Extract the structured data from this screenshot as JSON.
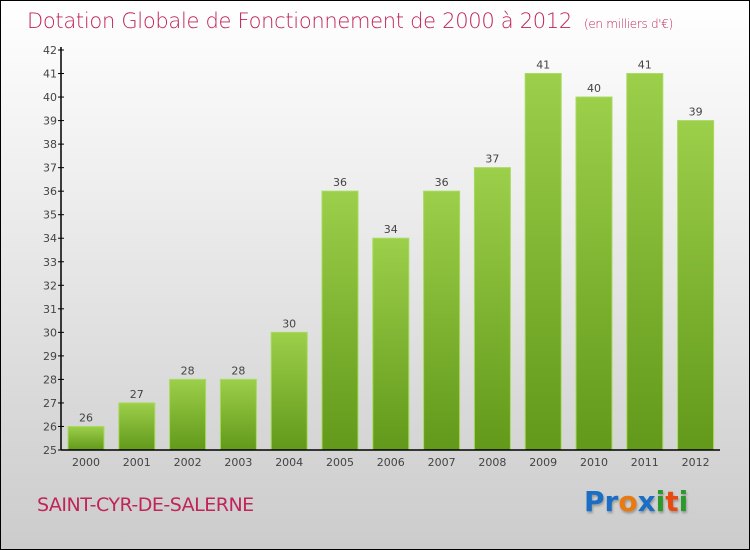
{
  "chart_data": {
    "type": "bar",
    "title": "Dotation Globale de Fonctionnement de 2000 à 2012",
    "unit": "(en milliers d'€)",
    "categories": [
      "2000",
      "2001",
      "2002",
      "2003",
      "2004",
      "2005",
      "2006",
      "2007",
      "2008",
      "2009",
      "2010",
      "2011",
      "2012"
    ],
    "values": [
      26,
      27,
      28,
      28,
      30,
      36,
      34,
      36,
      37,
      41,
      40,
      41,
      39
    ],
    "ylim": [
      25,
      42
    ],
    "yticks": [
      25,
      26,
      27,
      28,
      29,
      30,
      31,
      32,
      33,
      34,
      35,
      36,
      37,
      38,
      39,
      40,
      41,
      42
    ],
    "xlabel": "",
    "ylabel": "",
    "bar_color_top": "#9ccf4a",
    "bar_color_bottom": "#62991a"
  },
  "commune": "SAINT-CYR-DE-SALERNE",
  "logo": "Proxiti",
  "logo_colors": [
    "#1a6fc4",
    "#1a6fc4",
    "#e87a10",
    "#1a6fc4",
    "#2a9a2a",
    "#e84a10",
    "#2a9a2a"
  ]
}
